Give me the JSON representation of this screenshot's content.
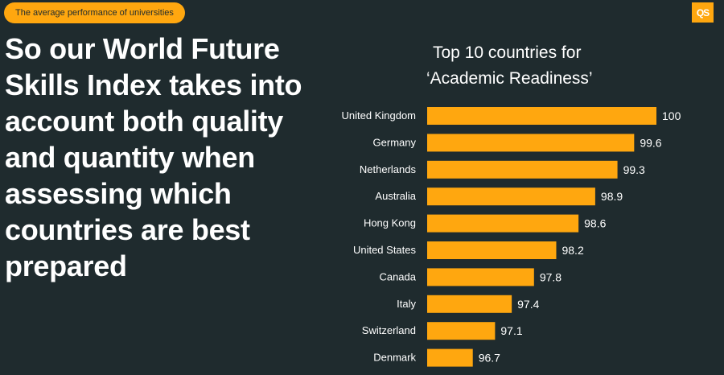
{
  "header": {
    "tag": "The average performance of universities",
    "logo": "QS"
  },
  "headline": "So our World Future Skills Index takes into account both quality and quantity when assessing which countries are best prepared",
  "colors": {
    "background": "#1f2b2e",
    "accent": "#ffa70f",
    "text": "#ffffff"
  },
  "chart_data": {
    "type": "bar",
    "orientation": "horizontal",
    "title_lines": [
      "Top 10 countries for",
      "‘Academic Readiness’"
    ],
    "categories": [
      "United Kingdom",
      "Germany",
      "Netherlands",
      "Australia",
      "Hong Kong",
      "United States",
      "Canada",
      "Italy",
      "Switzerland",
      "Denmark"
    ],
    "values": [
      100,
      99.6,
      99.3,
      98.9,
      98.6,
      98.2,
      97.8,
      97.4,
      97.1,
      96.7
    ],
    "labels": [
      "100",
      "99.6",
      "99.3",
      "98.9",
      "98.6",
      "98.2",
      "97.8",
      "97.4",
      "97.1",
      "96.7"
    ],
    "grid": false,
    "xlabel": "",
    "ylabel": ""
  }
}
